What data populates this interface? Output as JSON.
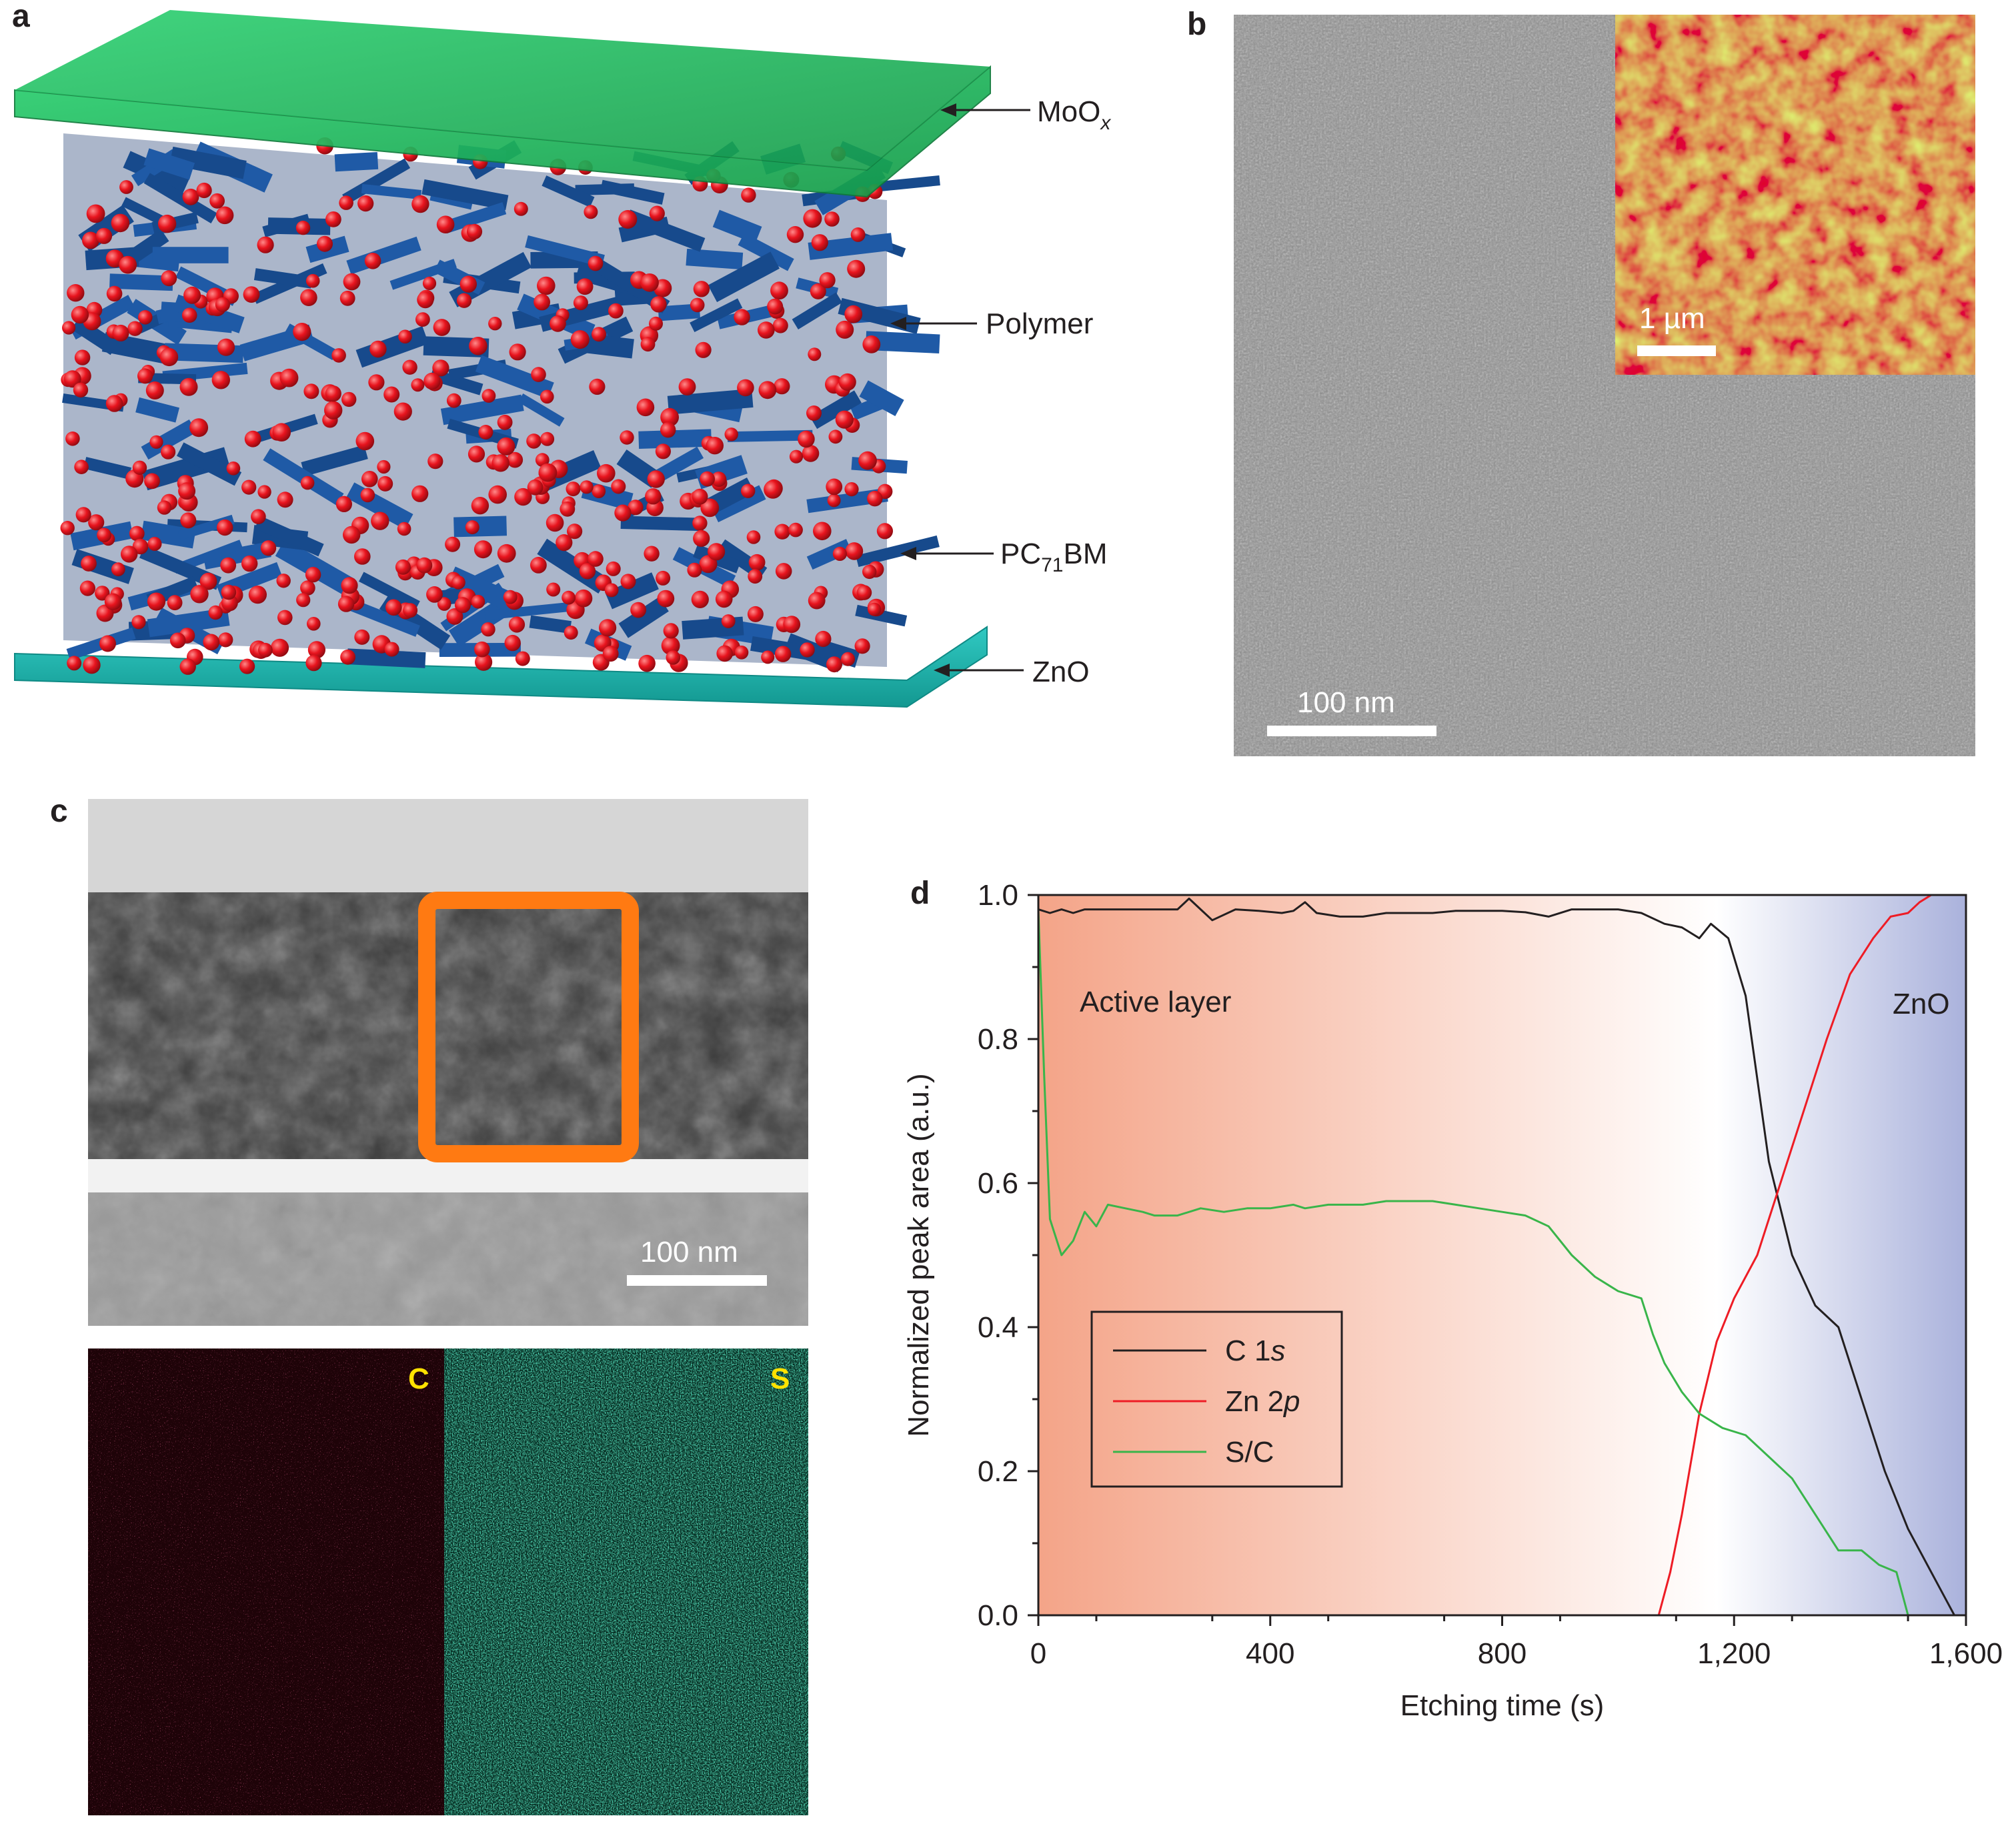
{
  "panels": {
    "a": {
      "letter": "a",
      "labels": {
        "moox": "MoO",
        "moox_sub": "x",
        "polymer": "Polymer",
        "pcbm_pre": "PC",
        "pcbm_sub": "71",
        "pcbm_post": "BM",
        "zno": "ZnO"
      },
      "colors": {
        "moox": "#1fb15a",
        "polymer": "#1f5aa6",
        "pcbm": "#e8141e",
        "zno": "#19b3ad"
      }
    },
    "b": {
      "letter": "b",
      "scalebar": "100 nm",
      "inset_scalebar": "1 µm"
    },
    "c": {
      "letter": "c",
      "scalebar": "100 nm",
      "map_c": "C",
      "map_s": "S",
      "colors": {
        "box": "#ff7a12",
        "map_c": "#e8285a",
        "map_s": "#19a878",
        "map_label": "#ffe200"
      }
    },
    "d": {
      "letter": "d",
      "annotations": {
        "active": "Active layer",
        "zno": "ZnO"
      }
    }
  },
  "chart_data": {
    "type": "line",
    "title": "",
    "xlabel": "Etching time (s)",
    "ylabel": "Normalized peak area (a.u.)",
    "xlim": [
      0,
      1600
    ],
    "ylim": [
      0,
      1.0
    ],
    "xticks": [
      0,
      400,
      800,
      1200,
      1600
    ],
    "xtick_labels": [
      "0",
      "400",
      "800",
      "1,200",
      "1,600"
    ],
    "yticks": [
      0,
      0.2,
      0.4,
      0.6,
      0.8,
      1.0
    ],
    "ytick_labels": [
      "0.0",
      "0.2",
      "0.4",
      "0.6",
      "0.8",
      "1.0"
    ],
    "grid": false,
    "legend_position": "bottom-left",
    "shading": {
      "active_layer_end": 1170,
      "active_color": "#f4a488",
      "zno_color": "#aab2dc"
    },
    "series": [
      {
        "name": "C 1s",
        "name_main": "C 1",
        "name_italic": "s",
        "color": "#231f20",
        "x": [
          0,
          20,
          40,
          60,
          80,
          100,
          130,
          160,
          200,
          240,
          260,
          280,
          300,
          340,
          380,
          420,
          440,
          460,
          480,
          520,
          560,
          600,
          640,
          680,
          720,
          760,
          800,
          840,
          880,
          920,
          960,
          1000,
          1040,
          1080,
          1110,
          1140,
          1160,
          1190,
          1220,
          1260,
          1300,
          1340,
          1380,
          1420,
          1460,
          1500,
          1540,
          1580
        ],
        "y": [
          0.98,
          0.975,
          0.98,
          0.975,
          0.98,
          0.98,
          0.98,
          0.98,
          0.98,
          0.98,
          0.995,
          0.98,
          0.965,
          0.98,
          0.978,
          0.975,
          0.978,
          0.99,
          0.975,
          0.97,
          0.97,
          0.975,
          0.975,
          0.975,
          0.978,
          0.978,
          0.978,
          0.976,
          0.97,
          0.98,
          0.98,
          0.98,
          0.975,
          0.96,
          0.955,
          0.94,
          0.96,
          0.94,
          0.86,
          0.63,
          0.5,
          0.43,
          0.4,
          0.3,
          0.2,
          0.12,
          0.06,
          0.0
        ]
      },
      {
        "name": "Zn 2p",
        "name_main": "Zn 2",
        "name_italic": "p",
        "color": "#ee1c25",
        "x": [
          0,
          200,
          400,
          600,
          800,
          1000,
          1070,
          1090,
          1110,
          1140,
          1170,
          1200,
          1240,
          1280,
          1320,
          1360,
          1400,
          1440,
          1470,
          1500,
          1520,
          1540,
          1580
        ],
        "y": [
          0.0,
          0.0,
          0.0,
          0.0,
          0.0,
          0.0,
          0.0,
          0.06,
          0.14,
          0.28,
          0.38,
          0.44,
          0.5,
          0.6,
          0.7,
          0.8,
          0.89,
          0.94,
          0.97,
          0.975,
          0.99,
          1.0,
          1.0
        ]
      },
      {
        "name": "S/C",
        "name_main": "S/C",
        "name_italic": "",
        "color": "#39b54a",
        "x": [
          0,
          10,
          20,
          40,
          60,
          80,
          100,
          120,
          150,
          180,
          200,
          240,
          280,
          320,
          360,
          400,
          440,
          460,
          500,
          560,
          600,
          640,
          680,
          720,
          760,
          800,
          840,
          880,
          920,
          960,
          1000,
          1040,
          1060,
          1080,
          1110,
          1140,
          1180,
          1220,
          1260,
          1300,
          1340,
          1380,
          1420,
          1450,
          1480,
          1500,
          1540,
          1580
        ],
        "y": [
          0.98,
          0.75,
          0.55,
          0.5,
          0.52,
          0.56,
          0.54,
          0.57,
          0.565,
          0.56,
          0.555,
          0.555,
          0.565,
          0.56,
          0.565,
          0.565,
          0.57,
          0.565,
          0.57,
          0.57,
          0.575,
          0.575,
          0.575,
          0.57,
          0.565,
          0.56,
          0.555,
          0.54,
          0.5,
          0.47,
          0.45,
          0.44,
          0.39,
          0.35,
          0.31,
          0.28,
          0.26,
          0.25,
          0.22,
          0.19,
          0.14,
          0.09,
          0.09,
          0.07,
          0.06,
          0.0,
          0.0,
          0.0
        ]
      }
    ]
  }
}
